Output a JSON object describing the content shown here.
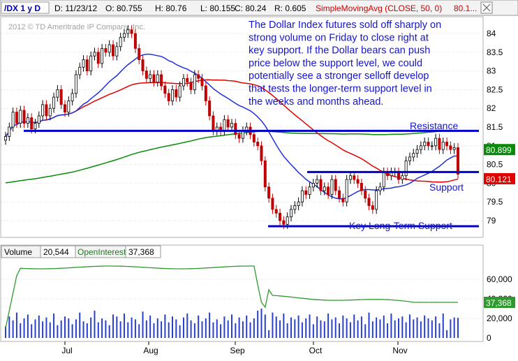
{
  "header": {
    "symbol": "/DX 1 y D",
    "date": "D: 11/23/12",
    "open": "O: 80.755",
    "high": "H: 80.76",
    "low": "L: 80.155",
    "close": "C: 80.24",
    "range": "R: 0.605",
    "study": "SimpleMovingAvg (CLOSE, 50, 0)",
    "study_value": "80.1..."
  },
  "copyright": "2012 © TD Ameritrade IP Company, Inc.",
  "annotation_lines": [
    "The Dollar Index futures sold off sharply on",
    "strong volume on Friday to close right at",
    "key support. If the Dollar bears can push",
    "price below the support level, we could",
    "potentially see a stronger selloff develop",
    "that tests the longer-term support level in",
    "the weeks and months ahead."
  ],
  "labels": {
    "resistance": "Resistance",
    "support": "Support",
    "long_term_support": "Key Long-Term Support"
  },
  "volume_header": {
    "volume_label": "Volume",
    "volume_value": "20,544",
    "oi_label": "OpenInterest",
    "oi_value": "37,368"
  },
  "colors": {
    "up_candle": "#ffffff",
    "down_candle": "#c00000",
    "candle_outline": "#000000",
    "sma_short": "#1f2fdc",
    "sma_50": "#e00000",
    "sma_long": "#0a8a0a",
    "level_line": "#0000c8",
    "annotation_text": "#1515d0",
    "volume_bar": "#2840d0",
    "open_interest": "#2e9a2e",
    "study_text": "#d00000"
  },
  "chart_data": [
    {
      "type": "candlestick",
      "title": "/DX 1 y D",
      "x_tick_labels": [
        "Jul",
        "Aug",
        "Sep",
        "Oct",
        "Nov"
      ],
      "y_tick_labels": [
        "84",
        "83.5",
        "83",
        "82.5",
        "82",
        "81.5",
        "81",
        "80.5",
        "80",
        "79.5",
        "79"
      ],
      "ylim": [
        78.75,
        84.35
      ],
      "levels": {
        "resistance": 81.4,
        "support": 80.3,
        "long_term_support": 78.85
      },
      "last_values": {
        "sma_long": "80.899",
        "sma_50": "80.121"
      },
      "closes": [
        81.25,
        81.5,
        81.9,
        81.6,
        81.95,
        81.6,
        81.75,
        81.45,
        81.6,
        81.8,
        82.1,
        81.8,
        82.0,
        82.3,
        82.5,
        82.1,
        81.9,
        82.2,
        82.4,
        82.9,
        83.1,
        83.3,
        83.0,
        83.4,
        83.5,
        83.2,
        83.6,
        83.5,
        83.7,
        83.4,
        83.65,
        83.9,
        84.0,
        84.1,
        84.0,
        83.6,
        83.3,
        83.0,
        82.8,
        82.9,
        82.7,
        82.9,
        82.6,
        82.4,
        82.2,
        82.5,
        82.3,
        82.6,
        82.8,
        82.7,
        82.5,
        82.9,
        82.8,
        82.6,
        82.2,
        81.8,
        81.4,
        81.5,
        81.4,
        81.7,
        81.5,
        81.6,
        81.3,
        81.2,
        81.4,
        81.5,
        81.3,
        81.1,
        81.0,
        80.6,
        79.9,
        79.6,
        79.3,
        79.2,
        79.0,
        78.9,
        79.1,
        79.3,
        79.4,
        79.5,
        79.8,
        79.7,
        79.9,
        80.0,
        80.1,
        79.8,
        79.9,
        79.7,
        80.1,
        79.8,
        79.6,
        79.5,
        80.1,
        80.2,
        80.1,
        80.0,
        79.8,
        79.6,
        79.4,
        79.3,
        79.8,
        79.9,
        80.3,
        80.2,
        80.3,
        80.3,
        80.1,
        80.2,
        80.6,
        80.7,
        80.8,
        80.9,
        81.0,
        81.1,
        81.0,
        81.0,
        81.2,
        80.9,
        81.1,
        81.0,
        80.9,
        80.95,
        80.24
      ],
      "volume": [
        12000,
        22000,
        18000,
        26000,
        15000,
        20000,
        24000,
        14000,
        19000,
        23000,
        17000,
        21000,
        16000,
        25000,
        13000,
        18000,
        22000,
        20000,
        14000,
        19000,
        26000,
        17000,
        15000,
        21000,
        28000,
        16000,
        20000,
        18000,
        13000,
        24000,
        22000,
        17000,
        25000,
        16000,
        21000,
        19000,
        14000,
        27000,
        18000,
        23000,
        15000,
        20000,
        17000,
        24000,
        16000,
        22000,
        19000,
        13000,
        21000,
        25000,
        18000,
        15000,
        23000,
        17000,
        20000,
        26000,
        16000,
        19000,
        14000,
        22000,
        18000,
        24000,
        15000,
        21000,
        17000,
        23000,
        16000,
        20000,
        28000,
        30000,
        24000,
        8000,
        26000,
        22000,
        18000,
        25000,
        15000,
        21000,
        19000,
        23000,
        16000,
        20000,
        24000,
        14000,
        22000,
        18000,
        17000,
        25000,
        19000,
        21000,
        15000,
        23000,
        20000,
        16000,
        24000,
        18000,
        22000,
        14000,
        26000,
        17000,
        21000,
        19000,
        23000,
        15000,
        25000,
        18000,
        20000,
        22000,
        16000,
        24000,
        19000,
        21000,
        17000,
        23000,
        20000,
        18000,
        22000,
        15000,
        25000,
        8000,
        19000,
        21000,
        20544
      ],
      "volume_ylim": [
        0,
        80000
      ],
      "volume_tick_labels": [
        "60,000",
        "40,000",
        "20,000",
        "0"
      ],
      "open_interest_last": "37,368"
    }
  ]
}
